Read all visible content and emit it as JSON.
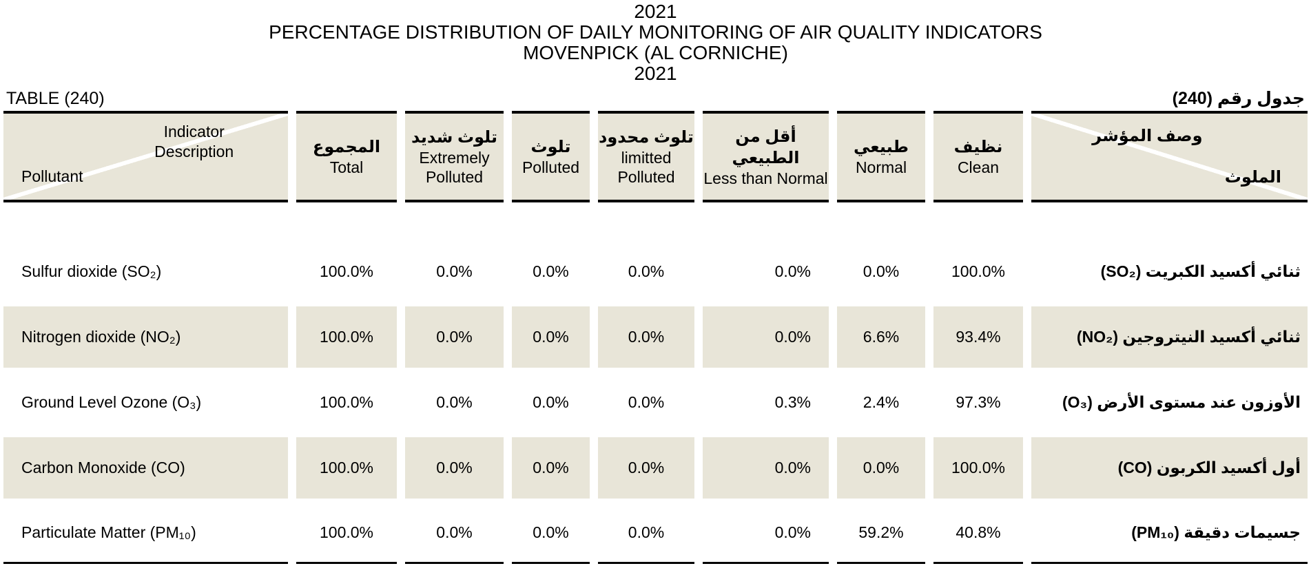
{
  "page": {
    "title_lines": [
      "2021",
      "PERCENTAGE DISTRIBUTION OF DAILY MONITORING OF AIR QUALITY INDICATORS",
      "MOVENPICK (AL CORNICHE)",
      "2021"
    ]
  },
  "table": {
    "label_en": "TABLE (240)",
    "label_ar": "جدول رقم (240)",
    "corner_left": {
      "top_line1": "Indicator",
      "top_line2": "Description",
      "bottom": "Pollutant"
    },
    "corner_right": {
      "top": "وصف المؤشر",
      "bottom": "الملوث"
    },
    "columns": [
      {
        "ar": "المجموع",
        "en": "Total"
      },
      {
        "ar": "تلوث شديد",
        "en": "Extremely Polluted"
      },
      {
        "ar": "تلوث",
        "en": "Polluted"
      },
      {
        "ar": "تلوث محدود",
        "en": "limitted Polluted"
      },
      {
        "ar": "أقل من الطبيعي",
        "en": "Less than Normal"
      },
      {
        "ar": "طبيعي",
        "en": "Normal"
      },
      {
        "ar": "نظيف",
        "en": "Clean"
      }
    ],
    "rows": [
      {
        "pollutant_en": "Sulfur dioxide (SO₂)",
        "pollutant_ar": "ثنائي أكسيد الكبريت (SO₂)",
        "total": "100.0%",
        "extremely_polluted": "0.0%",
        "polluted": "0.0%",
        "limitted_polluted": "0.0%",
        "less_than_normal": "0.0%",
        "normal": "0.0%",
        "clean": "100.0%"
      },
      {
        "pollutant_en": "Nitrogen dioxide (NO₂)",
        "pollutant_ar": "ثنائي أكسيد النيتروجين (NO₂)",
        "total": "100.0%",
        "extremely_polluted": "0.0%",
        "polluted": "0.0%",
        "limitted_polluted": "0.0%",
        "less_than_normal": "0.0%",
        "normal": "6.6%",
        "clean": "93.4%"
      },
      {
        "pollutant_en": "Ground Level Ozone (O₃)",
        "pollutant_ar": "الأوزون عند مستوى الأرض (O₃)",
        "total": "100.0%",
        "extremely_polluted": "0.0%",
        "polluted": "0.0%",
        "limitted_polluted": "0.0%",
        "less_than_normal": "0.3%",
        "normal": "2.4%",
        "clean": "97.3%"
      },
      {
        "pollutant_en": "Carbon Monoxide (CO)",
        "pollutant_ar": "أول أكسيد الكربون (CO)",
        "total": "100.0%",
        "extremely_polluted": "0.0%",
        "polluted": "0.0%",
        "limitted_polluted": "0.0%",
        "less_than_normal": "0.0%",
        "normal": "0.0%",
        "clean": "100.0%"
      },
      {
        "pollutant_en": "Particulate Matter (PM₁₀)",
        "pollutant_ar": "جسيمات دقيقة (PM₁₀)",
        "total": "100.0%",
        "extremely_polluted": "0.0%",
        "polluted": "0.0%",
        "limitted_polluted": "0.0%",
        "less_than_normal": "0.0%",
        "normal": "59.2%",
        "clean": "40.8%"
      }
    ]
  },
  "colors": {
    "cell_beige": "#e8e5d8",
    "border_black": "#000000"
  }
}
